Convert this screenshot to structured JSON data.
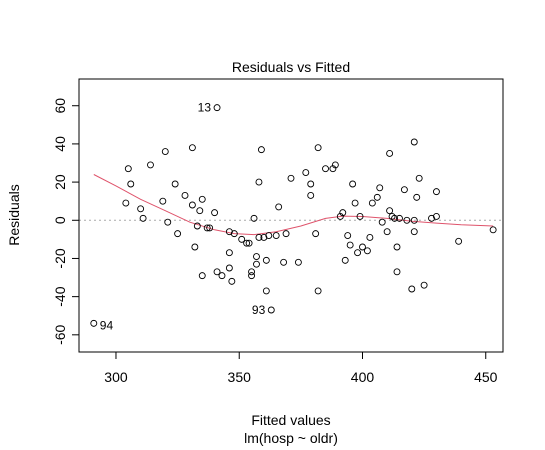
{
  "chart_data": {
    "type": "scatter",
    "title": "Residuals vs Fitted",
    "xlabel": "Fitted values",
    "subtitle": "lm(hosp ~ oldr)",
    "ylabel": "Residuals",
    "xlim": [
      285,
      457
    ],
    "ylim": [
      -69,
      74
    ],
    "x_ticks": [
      300,
      350,
      400,
      450
    ],
    "y_ticks": [
      -60,
      -40,
      -20,
      0,
      20,
      40,
      60
    ],
    "reference_line": {
      "y": 0,
      "color": "#aaaaaa",
      "style": "dotted"
    },
    "smooth_color": "#df536b",
    "point_color": "#000000",
    "points": [
      [
        291,
        -54
      ],
      [
        304,
        9
      ],
      [
        305,
        27
      ],
      [
        306,
        19
      ],
      [
        310,
        6
      ],
      [
        311,
        1
      ],
      [
        314,
        29
      ],
      [
        319,
        10
      ],
      [
        320,
        36
      ],
      [
        321,
        -1
      ],
      [
        324,
        19
      ],
      [
        325,
        -7
      ],
      [
        328,
        13
      ],
      [
        331,
        8
      ],
      [
        331,
        38
      ],
      [
        332,
        -14
      ],
      [
        333,
        -3
      ],
      [
        334,
        5
      ],
      [
        335,
        11
      ],
      [
        335,
        -29
      ],
      [
        337,
        -4
      ],
      [
        338,
        -4
      ],
      [
        340,
        4
      ],
      [
        341,
        59
      ],
      [
        341,
        -27
      ],
      [
        343,
        -29
      ],
      [
        346,
        -17
      ],
      [
        346,
        -6
      ],
      [
        346,
        -25
      ],
      [
        347,
        -32
      ],
      [
        348,
        -7
      ],
      [
        351,
        -10
      ],
      [
        353,
        -12
      ],
      [
        354,
        -12
      ],
      [
        355,
        -27
      ],
      [
        355,
        -29
      ],
      [
        356,
        1
      ],
      [
        357,
        -19
      ],
      [
        357,
        -23
      ],
      [
        358,
        -9
      ],
      [
        358,
        20
      ],
      [
        359,
        37
      ],
      [
        360,
        -9
      ],
      [
        361,
        -21
      ],
      [
        361,
        -37
      ],
      [
        362,
        -8
      ],
      [
        363,
        -47
      ],
      [
        365,
        -8
      ],
      [
        366,
        7
      ],
      [
        368,
        -22
      ],
      [
        369,
        -7
      ],
      [
        371,
        22
      ],
      [
        374,
        -22
      ],
      [
        377,
        25
      ],
      [
        379,
        13
      ],
      [
        379,
        19
      ],
      [
        381,
        -7
      ],
      [
        382,
        38
      ],
      [
        382,
        -37
      ],
      [
        385,
        27
      ],
      [
        388,
        27
      ],
      [
        389,
        29
      ],
      [
        391,
        2
      ],
      [
        392,
        4
      ],
      [
        393,
        -21
      ],
      [
        394,
        -8
      ],
      [
        395,
        -13
      ],
      [
        396,
        19
      ],
      [
        397,
        9
      ],
      [
        398,
        -17
      ],
      [
        399,
        2
      ],
      [
        400,
        -14
      ],
      [
        402,
        -16
      ],
      [
        403,
        -9
      ],
      [
        404,
        9
      ],
      [
        406,
        12
      ],
      [
        407,
        17
      ],
      [
        408,
        -1
      ],
      [
        410,
        -6
      ],
      [
        411,
        35
      ],
      [
        411,
        5
      ],
      [
        412,
        2
      ],
      [
        413,
        1
      ],
      [
        414,
        -14
      ],
      [
        414,
        -27
      ],
      [
        415,
        1
      ],
      [
        417,
        16
      ],
      [
        418,
        0
      ],
      [
        420,
        -36
      ],
      [
        421,
        0
      ],
      [
        421,
        -6
      ],
      [
        421,
        41
      ],
      [
        422,
        12
      ],
      [
        423,
        22
      ],
      [
        425,
        -34
      ],
      [
        428,
        1
      ],
      [
        430,
        15
      ],
      [
        430,
        2
      ],
      [
        439,
        -11
      ],
      [
        453,
        -5
      ]
    ],
    "smooth": [
      [
        291,
        24
      ],
      [
        300,
        18
      ],
      [
        310,
        11
      ],
      [
        320,
        5
      ],
      [
        330,
        -1
      ],
      [
        340,
        -5
      ],
      [
        348,
        -7
      ],
      [
        356,
        -7.5
      ],
      [
        365,
        -6
      ],
      [
        375,
        -3
      ],
      [
        385,
        1
      ],
      [
        392,
        2.2
      ],
      [
        400,
        2
      ],
      [
        410,
        1
      ],
      [
        420,
        -0.5
      ],
      [
        430,
        -1.5
      ],
      [
        440,
        -2.3
      ],
      [
        453,
        -3
      ]
    ],
    "labeled_points": [
      {
        "label": "13",
        "x": 341,
        "y": 59
      },
      {
        "label": "93",
        "x": 363,
        "y": -47
      },
      {
        "label": "94",
        "x": 291,
        "y": -54
      }
    ]
  }
}
